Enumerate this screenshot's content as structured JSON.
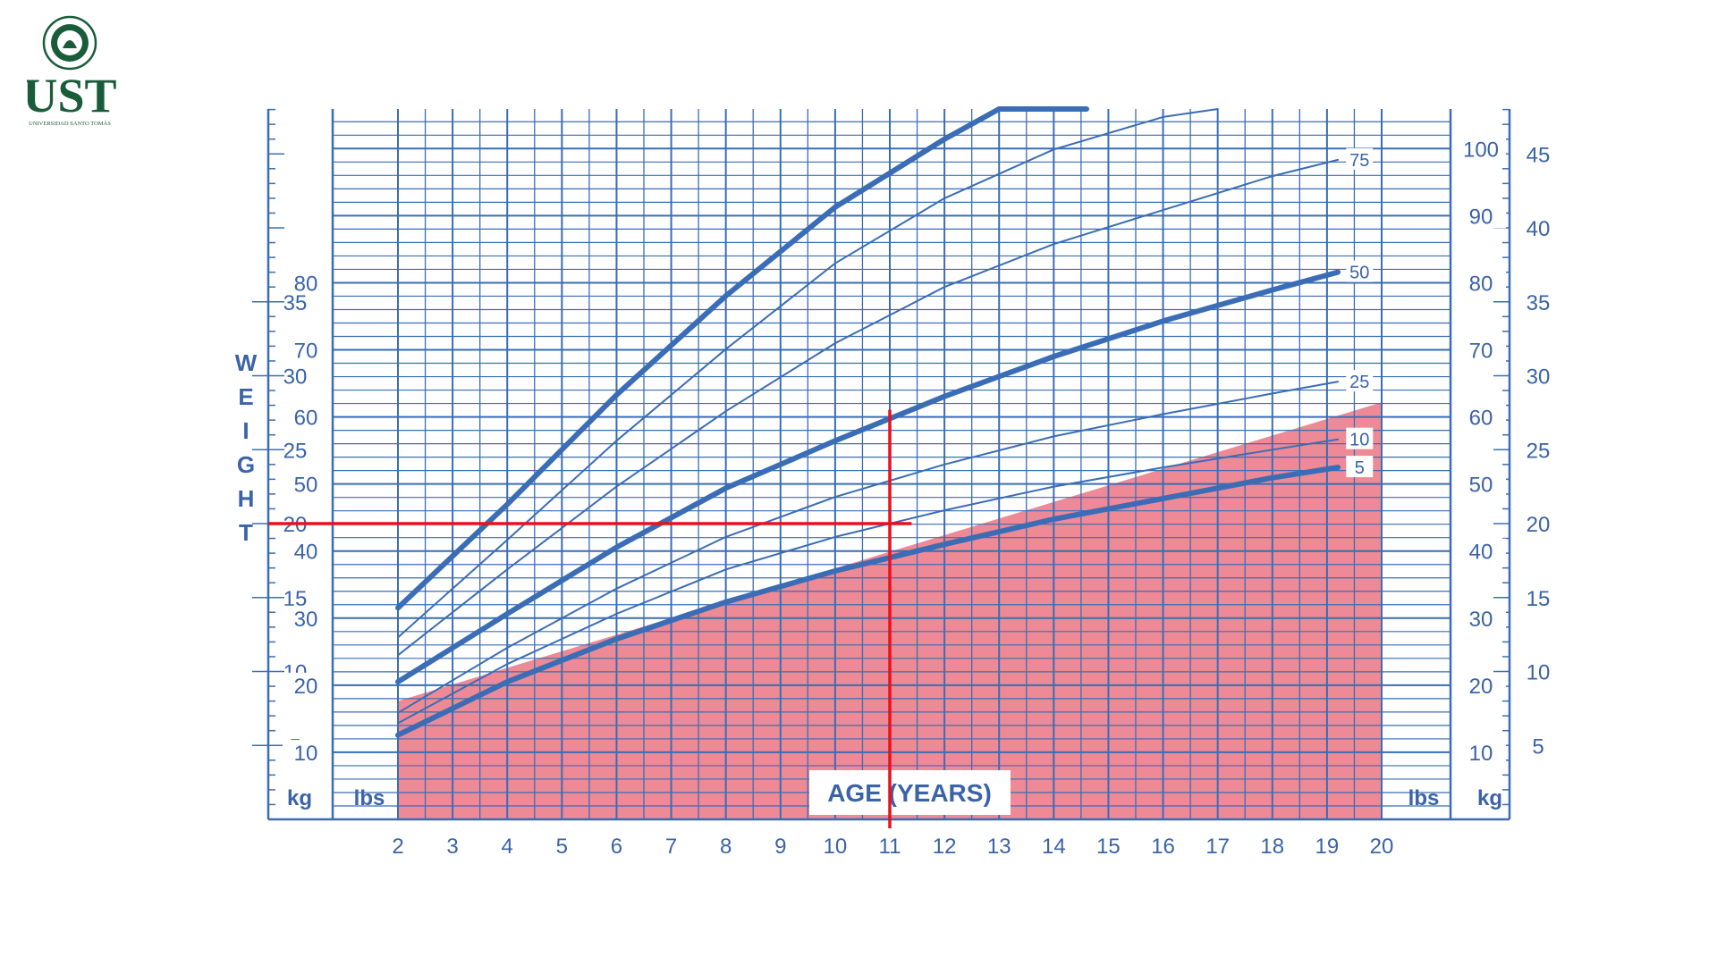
{
  "logo": {
    "text": "UST",
    "subtitle": "UNIVERSIDAD SANTO TOMÁS",
    "seal_text": "SANTO TOMÁS",
    "seal_motto": "LUX ET VERITAS",
    "color": "#1a5c3a"
  },
  "chart_data": {
    "type": "line",
    "x_axis": {
      "label": "AGE (YEARS)",
      "range": [
        2,
        20
      ],
      "ticks": [
        "2",
        "3",
        "4",
        "5",
        "6",
        "7",
        "8",
        "9",
        "10",
        "11",
        "12",
        "13",
        "14",
        "15",
        "16",
        "17",
        "18",
        "19",
        "20"
      ]
    },
    "y_axis": {
      "label_letters": [
        "W",
        "E",
        "I",
        "G",
        "H",
        "T"
      ],
      "range_kg": [
        0,
        48
      ],
      "kg_ticks": [
        "5",
        "10",
        "15",
        "20",
        "25",
        "30",
        "35",
        "40",
        "45"
      ],
      "kg_tick_values": [
        5,
        10,
        15,
        20,
        25,
        30,
        35,
        40,
        45
      ],
      "lbs_ticks": [
        "10",
        "20",
        "30",
        "40",
        "50",
        "60",
        "70",
        "80",
        "90",
        "100"
      ],
      "lbs_tick_values": [
        10,
        20,
        30,
        40,
        50,
        60,
        70,
        80,
        90,
        100
      ],
      "left_lbs_ticks": [
        "10",
        "20",
        "30",
        "40",
        "50",
        "60",
        "70",
        "80"
      ],
      "left_kg_ticks": [
        "5",
        "10",
        "15",
        "20",
        "25",
        "30",
        "35"
      ],
      "unit_kg": "kg",
      "unit_lbs": "lbs"
    },
    "series": [
      {
        "name": "5",
        "style": "thick",
        "x": [
          2,
          4,
          6,
          8,
          10,
          12,
          14,
          16,
          18,
          19.2
        ],
        "y": [
          5.7,
          9.3,
          12.2,
          14.7,
          16.8,
          18.6,
          20.3,
          21.7,
          23.1,
          23.8
        ]
      },
      {
        "name": "10",
        "style": "thin",
        "x": [
          2,
          4,
          6,
          8,
          10,
          12,
          14,
          16,
          18,
          19.2
        ],
        "y": [
          6.5,
          10.5,
          13.9,
          16.9,
          19.1,
          20.9,
          22.5,
          23.8,
          25.0,
          25.7
        ]
      },
      {
        "name": "25",
        "style": "thin",
        "x": [
          2,
          4,
          6,
          8,
          10,
          12,
          14,
          16,
          18,
          19.2
        ],
        "y": [
          7.2,
          11.6,
          15.6,
          19.1,
          21.8,
          24.0,
          25.9,
          27.4,
          28.8,
          29.6
        ]
      },
      {
        "name": "50",
        "style": "thick",
        "x": [
          2,
          4,
          6,
          8,
          10,
          12,
          14,
          16,
          18,
          19.2
        ],
        "y": [
          9.3,
          13.9,
          18.4,
          22.4,
          25.6,
          28.6,
          31.3,
          33.7,
          35.8,
          37.0
        ]
      },
      {
        "name": "75",
        "style": "thin",
        "x": [
          2,
          4,
          6,
          8,
          10,
          12,
          14,
          16,
          18,
          19.2
        ],
        "y": [
          11.1,
          16.9,
          22.5,
          27.6,
          32.2,
          36.0,
          38.9,
          41.2,
          43.5,
          44.6
        ]
      },
      {
        "name": "",
        "style": "thin",
        "x": [
          2,
          4,
          6,
          8,
          10,
          12,
          14,
          16,
          17
        ],
        "y": [
          12.3,
          18.9,
          25.6,
          31.8,
          37.6,
          42.0,
          45.3,
          47.5,
          48.5
        ]
      },
      {
        "name": "",
        "style": "thick",
        "x": [
          2,
          4,
          6,
          8,
          10,
          12,
          13,
          14,
          14.6
        ],
        "y": [
          14.3,
          21.3,
          28.7,
          35.4,
          41.4,
          46.0,
          48.4,
          50.5,
          51.5
        ]
      }
    ],
    "shaded_region": {
      "color": "#ee8a96",
      "x": [
        2,
        20
      ],
      "upper_y": [
        8.0,
        28.2
      ]
    },
    "marker": {
      "color": "#e8111d",
      "age": 11,
      "weight_kg": 20
    }
  }
}
